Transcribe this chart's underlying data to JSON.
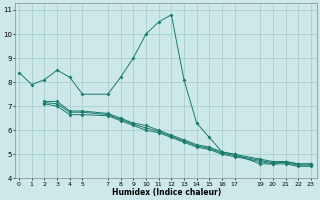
{
  "xlabel": "Humidex (Indice chaleur)",
  "background_color": "#cce8e8",
  "grid_color": "#aad0d0",
  "line_color": "#1a7a6e",
  "series": [
    {
      "x": [
        0,
        1,
        2,
        3,
        4,
        5,
        7,
        8,
        9,
        10,
        11,
        12,
        13,
        14,
        15,
        16,
        17,
        19,
        20,
        21,
        22,
        23
      ],
      "y": [
        8.4,
        7.9,
        8.1,
        8.5,
        8.2,
        7.5,
        7.5,
        8.2,
        9.0,
        10.0,
        10.5,
        10.8,
        8.1,
        6.3,
        5.7,
        5.1,
        5.0,
        4.6,
        4.6,
        4.7,
        4.6,
        4.6
      ]
    },
    {
      "x": [
        2,
        3,
        4,
        5,
        7,
        8,
        9,
        10,
        11,
        12,
        13,
        14,
        15,
        16,
        17,
        19,
        20,
        21,
        22,
        23
      ],
      "y": [
        7.2,
        7.2,
        6.8,
        6.8,
        6.7,
        6.5,
        6.3,
        6.2,
        6.0,
        5.8,
        5.6,
        5.4,
        5.3,
        5.1,
        5.0,
        4.8,
        4.7,
        4.7,
        4.6,
        4.6
      ]
    },
    {
      "x": [
        2,
        3,
        4,
        5,
        7,
        8,
        9,
        10,
        11,
        12,
        13,
        14,
        15,
        16,
        17,
        19,
        20,
        21,
        22,
        23
      ],
      "y": [
        7.15,
        7.1,
        6.75,
        6.75,
        6.65,
        6.45,
        6.25,
        6.1,
        5.95,
        5.75,
        5.55,
        5.35,
        5.25,
        5.05,
        4.95,
        4.75,
        4.65,
        4.65,
        4.55,
        4.55
      ]
    },
    {
      "x": [
        2,
        3,
        4,
        5,
        7,
        8,
        9,
        10,
        11,
        12,
        13,
        14,
        15,
        16,
        17,
        19,
        20,
        21,
        22,
        23
      ],
      "y": [
        7.1,
        7.0,
        6.65,
        6.65,
        6.6,
        6.4,
        6.2,
        6.0,
        5.9,
        5.7,
        5.5,
        5.3,
        5.2,
        5.0,
        4.9,
        4.7,
        4.6,
        4.6,
        4.5,
        4.5
      ]
    }
  ],
  "xlim": [
    -0.3,
    23.5
  ],
  "ylim": [
    4,
    11.3
  ],
  "xticks": [
    0,
    1,
    2,
    3,
    4,
    5,
    7,
    8,
    9,
    10,
    11,
    12,
    13,
    14,
    15,
    16,
    17,
    19,
    20,
    21,
    22,
    23
  ],
  "xtick_labels": [
    "0",
    "1",
    "2",
    "3",
    "4",
    "5",
    "7",
    "8",
    "9",
    "10",
    "11",
    "12",
    "13",
    "14",
    "15",
    "16",
    "17",
    "19",
    "20",
    "21",
    "22",
    "23"
  ],
  "yticks": [
    4,
    5,
    6,
    7,
    8,
    9,
    10,
    11
  ],
  "ytick_labels": [
    "4",
    "5",
    "6",
    "7",
    "8",
    "9",
    "10",
    "11"
  ]
}
